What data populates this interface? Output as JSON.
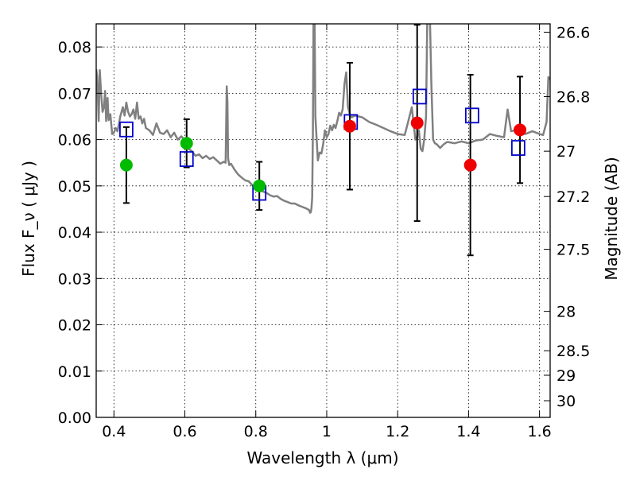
{
  "chart_data": {
    "type": "scatter",
    "xlabel": "Wavelength  λ (μm)",
    "ylabel": "Flux  F_ν  ( μJy )",
    "ylabel_right": "Magnitude (AB)",
    "xlim": [
      0.35,
      1.63
    ],
    "ylim": [
      0.0,
      0.085
    ],
    "grid": true,
    "grid_style": "dotted",
    "x_ticks": [
      0.4,
      0.6,
      0.8,
      1.0,
      1.2,
      1.4,
      1.6
    ],
    "x_tick_labels": [
      "0.4",
      "0.6",
      "0.8",
      "1",
      "1.2",
      "1.4",
      "1.6"
    ],
    "y_ticks": [
      0.0,
      0.01,
      0.02,
      0.03,
      0.04,
      0.05,
      0.06,
      0.07,
      0.08
    ],
    "y_tick_labels": [
      "0.00",
      "0.01",
      "0.02",
      "0.03",
      "0.04",
      "0.05",
      "0.06",
      "0.07",
      "0.08"
    ],
    "right_ticks": [
      {
        "label": "26.6",
        "flux": 0.0832
      },
      {
        "label": "26.8",
        "flux": 0.0693
      },
      {
        "label": "27",
        "flux": 0.0575
      },
      {
        "label": "27.2",
        "flux": 0.0477
      },
      {
        "label": "27.5",
        "flux": 0.0363
      },
      {
        "label": "28",
        "flux": 0.0229
      },
      {
        "label": "28.5",
        "flux": 0.0144
      },
      {
        "label": "29",
        "flux": 0.0091
      },
      {
        "label": "30",
        "flux": 0.0036
      }
    ],
    "colors": {
      "spectrum": "#808080",
      "model": "#0000cc",
      "green": "#00bb00",
      "red": "#ee0000",
      "errorbar": "#000000"
    },
    "model_spectrum": {
      "x": [
        0.35,
        0.353,
        0.357,
        0.36,
        0.364,
        0.368,
        0.372,
        0.375,
        0.378,
        0.382,
        0.385,
        0.39,
        0.395,
        0.4,
        0.405,
        0.41,
        0.418,
        0.425,
        0.43,
        0.435,
        0.44,
        0.445,
        0.45,
        0.455,
        0.46,
        0.465,
        0.47,
        0.475,
        0.48,
        0.485,
        0.49,
        0.5,
        0.51,
        0.52,
        0.53,
        0.54,
        0.55,
        0.56,
        0.57,
        0.58,
        0.59,
        0.6,
        0.61,
        0.62,
        0.63,
        0.64,
        0.65,
        0.66,
        0.67,
        0.68,
        0.69,
        0.7,
        0.71,
        0.715,
        0.718,
        0.72,
        0.722,
        0.725,
        0.73,
        0.74,
        0.75,
        0.76,
        0.77,
        0.78,
        0.79,
        0.8,
        0.81,
        0.82,
        0.83,
        0.84,
        0.85,
        0.86,
        0.87,
        0.88,
        0.89,
        0.9,
        0.91,
        0.92,
        0.93,
        0.94,
        0.945,
        0.95,
        0.953,
        0.955,
        0.957,
        0.959,
        0.961,
        0.963,
        0.965,
        0.968,
        0.975,
        0.98,
        0.985,
        0.99,
        0.995,
        1.0,
        1.005,
        1.01,
        1.015,
        1.02,
        1.025,
        1.03,
        1.035,
        1.04,
        1.045,
        1.05,
        1.055,
        1.06,
        1.065,
        1.07,
        1.08,
        1.1,
        1.12,
        1.14,
        1.16,
        1.18,
        1.2,
        1.22,
        1.23,
        1.24,
        1.25,
        1.255,
        1.26,
        1.265,
        1.27,
        1.275,
        1.28,
        1.285,
        1.29,
        1.295,
        1.3,
        1.305,
        1.31,
        1.32,
        1.33,
        1.34,
        1.36,
        1.38,
        1.4,
        1.42,
        1.44,
        1.46,
        1.48,
        1.5,
        1.51,
        1.52,
        1.53,
        1.54,
        1.56,
        1.58,
        1.6,
        1.61,
        1.62,
        1.625,
        1.63
      ],
      "y": [
        0.0752,
        0.0735,
        0.064,
        0.075,
        0.07,
        0.066,
        0.067,
        0.0705,
        0.064,
        0.069,
        0.0642,
        0.0655,
        0.0612,
        0.0615,
        0.0625,
        0.0618,
        0.065,
        0.067,
        0.0652,
        0.068,
        0.066,
        0.065,
        0.0655,
        0.0665,
        0.0645,
        0.068,
        0.0645,
        0.065,
        0.0635,
        0.0645,
        0.0625,
        0.062,
        0.061,
        0.0635,
        0.0615,
        0.0612,
        0.062,
        0.0605,
        0.0615,
        0.06,
        0.0607,
        0.0598,
        0.058,
        0.0575,
        0.0565,
        0.0568,
        0.056,
        0.0565,
        0.0558,
        0.0562,
        0.0555,
        0.0548,
        0.0552,
        0.055,
        0.0715,
        0.068,
        0.056,
        0.0545,
        0.0548,
        0.0535,
        0.0525,
        0.0518,
        0.0512,
        0.051,
        0.0502,
        0.0495,
        0.049,
        0.0488,
        0.0485,
        0.048,
        0.0477,
        0.0478,
        0.0472,
        0.0468,
        0.0465,
        0.0462,
        0.0462,
        0.0458,
        0.0455,
        0.0452,
        0.045,
        0.0448,
        0.0442,
        0.0443,
        0.0452,
        0.0475,
        0.062,
        0.09,
        0.095,
        0.065,
        0.0555,
        0.0572,
        0.057,
        0.059,
        0.062,
        0.0605,
        0.0612,
        0.063,
        0.062,
        0.0632,
        0.0625,
        0.064,
        0.0658,
        0.0652,
        0.0665,
        0.072,
        0.0745,
        0.067,
        0.0655,
        0.0648,
        0.0652,
        0.0648,
        0.0638,
        0.0632,
        0.0625,
        0.0618,
        0.0612,
        0.061,
        0.064,
        0.067,
        0.06,
        0.0605,
        0.062,
        0.058,
        0.0575,
        0.06,
        0.065,
        0.095,
        0.09,
        0.072,
        0.06,
        0.0592,
        0.059,
        0.0582,
        0.059,
        0.0595,
        0.0592,
        0.0596,
        0.0592,
        0.0598,
        0.06,
        0.0612,
        0.0608,
        0.0605,
        0.0665,
        0.0618,
        0.062,
        0.0615,
        0.0612,
        0.0618,
        0.0612,
        0.061,
        0.0638,
        0.0735,
        0.073
      ]
    },
    "points": [
      {
        "wavelength": 0.435,
        "flux": 0.0545,
        "marker": "green",
        "err_low": 0.0082,
        "err_high": 0.0082
      },
      {
        "wavelength": 0.605,
        "flux": 0.0592,
        "marker": "green",
        "err_low": 0.0052,
        "err_high": 0.0052
      },
      {
        "wavelength": 0.81,
        "flux": 0.05,
        "marker": "green",
        "err_low": 0.0052,
        "err_high": 0.0052
      },
      {
        "wavelength": 1.065,
        "flux": 0.0629,
        "marker": "red",
        "err_low": 0.0137,
        "err_high": 0.0137
      },
      {
        "wavelength": 1.255,
        "flux": 0.0636,
        "marker": "red",
        "err_low": 0.0212,
        "err_high": 0.0212
      },
      {
        "wavelength": 1.405,
        "flux": 0.0545,
        "marker": "red",
        "err_low": 0.0195,
        "err_high": 0.0195
      },
      {
        "wavelength": 1.545,
        "flux": 0.0621,
        "marker": "red",
        "err_low": 0.0115,
        "err_high": 0.0115
      }
    ],
    "model_points": [
      {
        "wavelength": 0.435,
        "flux": 0.0622
      },
      {
        "wavelength": 0.605,
        "flux": 0.0558
      },
      {
        "wavelength": 0.81,
        "flux": 0.0485
      },
      {
        "wavelength": 1.068,
        "flux": 0.0638
      },
      {
        "wavelength": 1.262,
        "flux": 0.0693
      },
      {
        "wavelength": 1.41,
        "flux": 0.0652
      },
      {
        "wavelength": 1.54,
        "flux": 0.0582
      }
    ]
  }
}
